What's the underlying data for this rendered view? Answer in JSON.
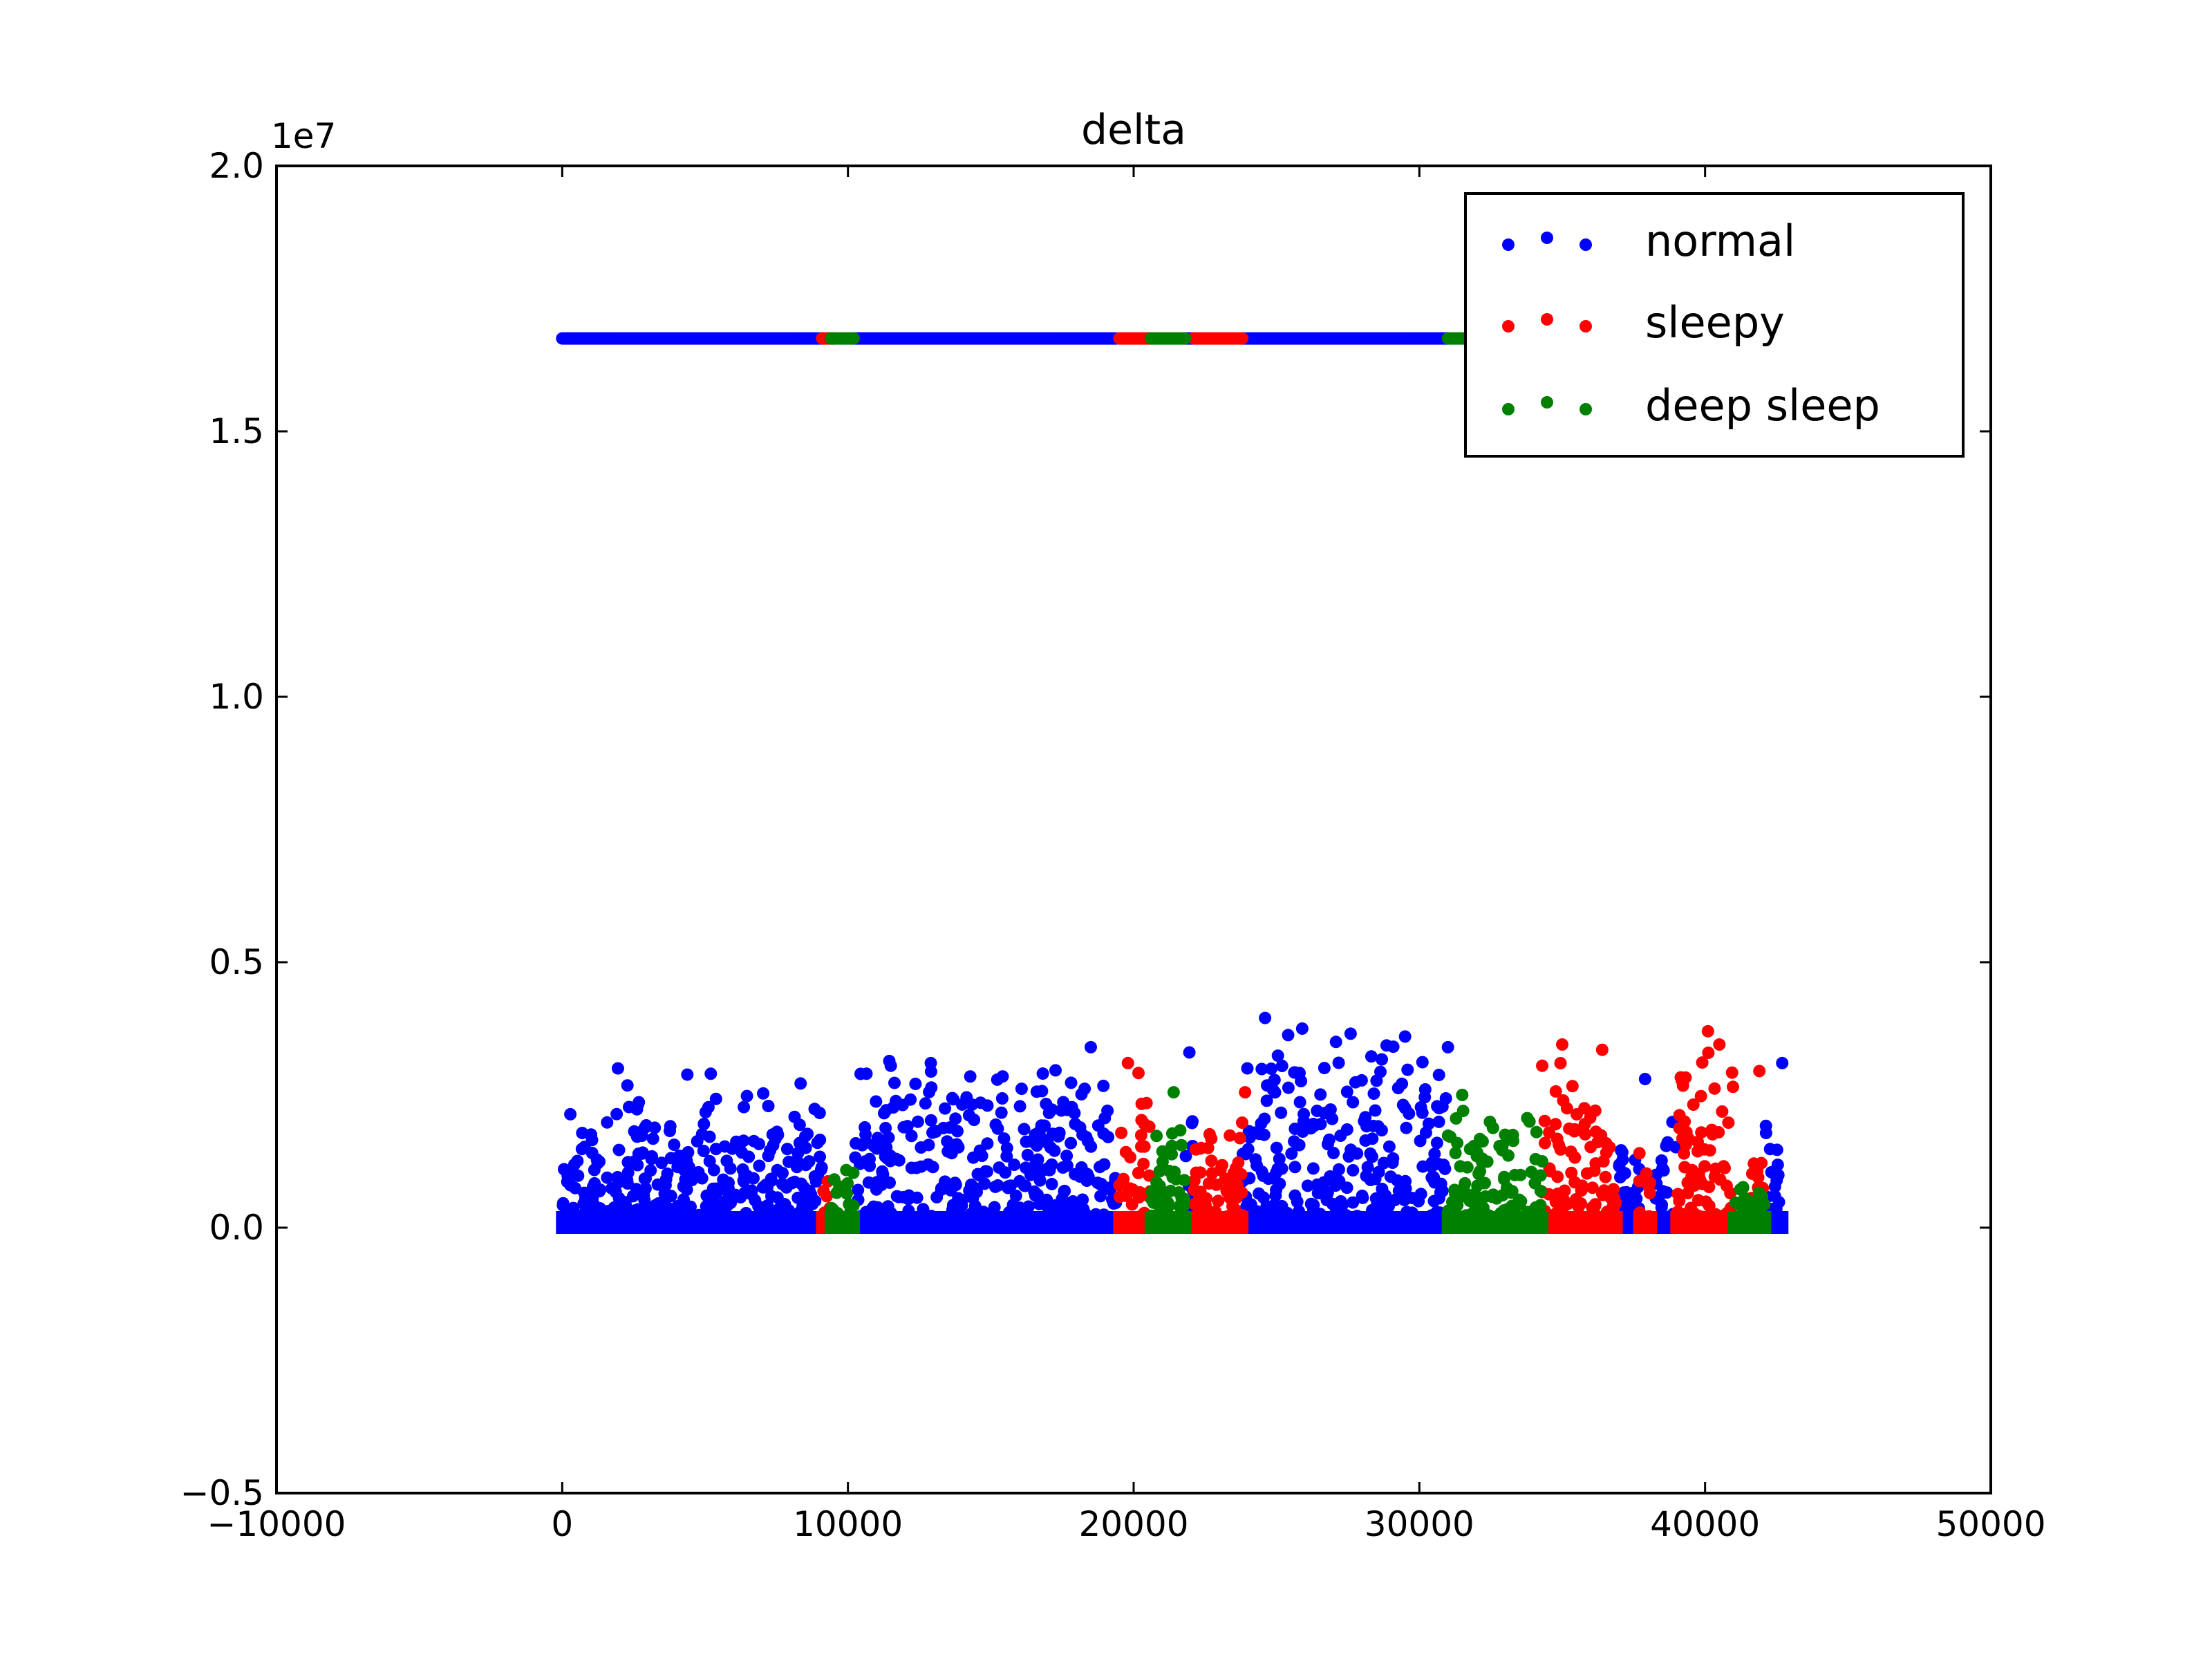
{
  "chart_data": {
    "type": "scatter",
    "title": "delta",
    "xlabel": "",
    "ylabel": "",
    "xlim": [
      -10000,
      50000
    ],
    "ylim": [
      -5000000,
      20000000
    ],
    "y_offset_label": "1e7",
    "x_ticks": [
      {
        "value": -10000,
        "label": "−10000"
      },
      {
        "value": 0,
        "label": "0"
      },
      {
        "value": 10000,
        "label": "10000"
      },
      {
        "value": 20000,
        "label": "20000"
      },
      {
        "value": 30000,
        "label": "30000"
      },
      {
        "value": 40000,
        "label": "40000"
      },
      {
        "value": 50000,
        "label": "50000"
      }
    ],
    "y_ticks": [
      {
        "value": -5000000,
        "label": "−0.5"
      },
      {
        "value": 0,
        "label": "0.0"
      },
      {
        "value": 5000000,
        "label": "0.5"
      },
      {
        "value": 10000000,
        "label": "1.0"
      },
      {
        "value": 15000000,
        "label": "1.5"
      },
      {
        "value": 20000000,
        "label": "2.0"
      }
    ],
    "grid": false,
    "legend_position": "top-right",
    "series": [
      {
        "name": "normal",
        "color": "#0000ff",
        "saturated_value": 16750000,
        "segments": [
          {
            "x_start": 0,
            "x_end": 9100,
            "max_y": 3000000
          },
          {
            "x_start": 10200,
            "x_end": 19400,
            "max_y": 3400000
          },
          {
            "x_start": 21800,
            "x_end": 22100,
            "max_y": 3300000
          },
          {
            "x_start": 23800,
            "x_end": 31000,
            "max_y": 3900000
          },
          {
            "x_start": 36900,
            "x_end": 37700,
            "max_y": 2000000
          },
          {
            "x_start": 38100,
            "x_end": 39000,
            "max_y": 2300000
          },
          {
            "x_start": 42100,
            "x_end": 42700,
            "max_y": 3100000
          }
        ],
        "points": [
          {
            "x": 1950,
            "y": 3000000
          },
          {
            "x": 5200,
            "y": 2900000
          },
          {
            "x": 11500,
            "y": 3050000
          },
          {
            "x": 12900,
            "y": 3100000
          },
          {
            "x": 18500,
            "y": 3400000
          },
          {
            "x": 21950,
            "y": 3300000
          },
          {
            "x": 24600,
            "y": 3950000
          },
          {
            "x": 25900,
            "y": 3750000
          },
          {
            "x": 29500,
            "y": 3600000
          },
          {
            "x": 31000,
            "y": 3400000
          },
          {
            "x": 37900,
            "y": 2800000
          },
          {
            "x": 42700,
            "y": 3100000
          }
        ]
      },
      {
        "name": "sleepy",
        "color": "#ff0000",
        "saturated_value": 16750000,
        "segments": [
          {
            "x_start": 9100,
            "x_end": 9500,
            "max_y": 1200000
          },
          {
            "x_start": 19500,
            "x_end": 20600,
            "max_y": 3100000
          },
          {
            "x_start": 22100,
            "x_end": 23800,
            "max_y": 2500000
          },
          {
            "x_start": 34300,
            "x_end": 36900,
            "max_y": 3400000
          },
          {
            "x_start": 37700,
            "x_end": 38100,
            "max_y": 2000000
          },
          {
            "x_start": 39000,
            "x_end": 41000,
            "max_y": 3700000
          },
          {
            "x_start": 41600,
            "x_end": 42100,
            "max_y": 2200000
          }
        ],
        "points": [
          {
            "x": 19800,
            "y": 3100000
          },
          {
            "x": 23900,
            "y": 2550000
          },
          {
            "x": 34300,
            "y": 3050000
          },
          {
            "x": 35000,
            "y": 3450000
          },
          {
            "x": 36400,
            "y": 3350000
          },
          {
            "x": 40100,
            "y": 3700000
          },
          {
            "x": 40500,
            "y": 3450000
          },
          {
            "x": 41900,
            "y": 2950000
          }
        ]
      },
      {
        "name": "deep sleep",
        "color": "#008000",
        "saturated_value": 16750000,
        "segments": [
          {
            "x_start": 9400,
            "x_end": 10200,
            "max_y": 1500000
          },
          {
            "x_start": 20600,
            "x_end": 21800,
            "max_y": 2500000
          },
          {
            "x_start": 31000,
            "x_end": 34300,
            "max_y": 2400000
          },
          {
            "x_start": 41000,
            "x_end": 41600,
            "max_y": 900000
          },
          {
            "x_start": 41800,
            "x_end": 42100,
            "max_y": 700000
          }
        ],
        "points": [
          {
            "x": 21400,
            "y": 2550000
          },
          {
            "x": 31500,
            "y": 2500000
          },
          {
            "x": 32200,
            "y": 1300000
          },
          {
            "x": 33000,
            "y": 1750000
          },
          {
            "x": 34100,
            "y": 1800000
          }
        ]
      }
    ]
  }
}
